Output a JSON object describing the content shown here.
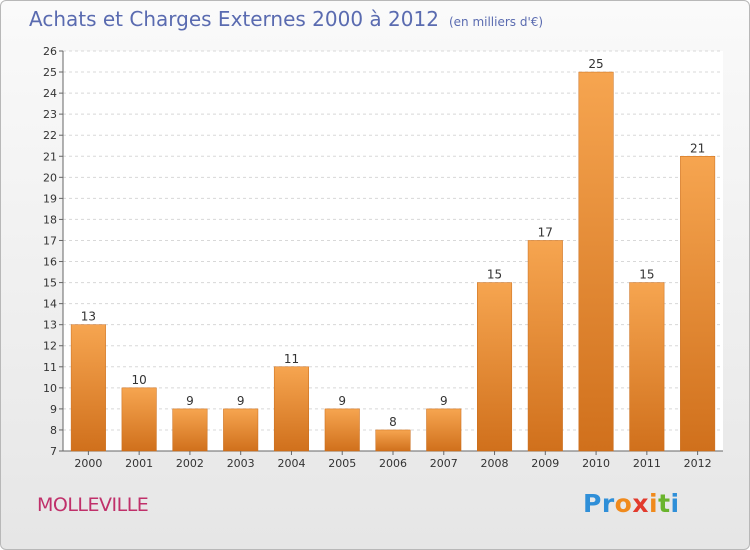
{
  "title": "Achats et Charges Externes 2000 à 2012",
  "unit": "(en milliers d'€)",
  "place": "MOLLEVILLE",
  "logo": {
    "letters": [
      "P",
      "r",
      "o",
      "x",
      "i",
      "t",
      "i"
    ],
    "colors": [
      "#2f8fd8",
      "#2f8fd8",
      "#f08a1c",
      "#e23a2d",
      "#f08a1c",
      "#6ab42d",
      "#2f8fd8"
    ]
  },
  "colors": {
    "bar_top": "#f6a550",
    "bar_bottom": "#d0701c",
    "title": "#5a6bb0",
    "place": "#c0306a"
  },
  "chart_data": {
    "type": "bar",
    "title": "Achats et Charges Externes 2000 à 2012",
    "subtitle": "(en milliers d'€)",
    "categories": [
      "2000",
      "2001",
      "2002",
      "2003",
      "2004",
      "2005",
      "2006",
      "2007",
      "2008",
      "2009",
      "2010",
      "2011",
      "2012"
    ],
    "values": [
      13,
      10,
      9,
      9,
      11,
      9,
      8,
      9,
      15,
      17,
      25,
      15,
      21
    ],
    "ylim": [
      7,
      26
    ],
    "yticks": [
      7,
      8,
      9,
      10,
      11,
      12,
      13,
      14,
      15,
      16,
      17,
      18,
      19,
      20,
      21,
      22,
      23,
      24,
      25,
      26
    ],
    "grid": true,
    "data_labels": true
  }
}
